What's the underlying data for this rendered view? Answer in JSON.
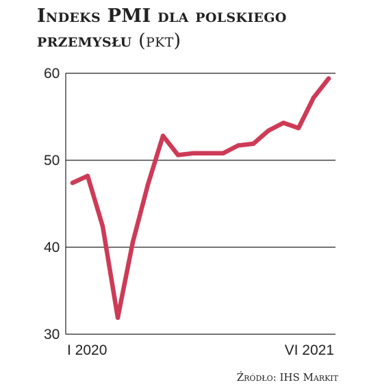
{
  "title": {
    "main": "Indeks PMI dla polskiego przemysłu",
    "unit": "(pkt)"
  },
  "source": "Źródło: IHS Markit",
  "colors": {
    "line": "#cd3b57",
    "grid": "#222222",
    "text": "#222222"
  },
  "chart_data": {
    "type": "line",
    "title": "Indeks PMI dla polskiego przemysłu (pkt)",
    "xlabel": "",
    "ylabel": "",
    "ylim": [
      30,
      60
    ],
    "yticks": [
      30,
      40,
      50,
      60
    ],
    "xtick_labels": [
      "I 2020",
      "VI 2021"
    ],
    "grid": "horizontal",
    "legend": "none",
    "x": [
      "2020-01",
      "2020-02",
      "2020-03",
      "2020-04",
      "2020-05",
      "2020-06",
      "2020-07",
      "2020-08",
      "2020-09",
      "2020-10",
      "2020-11",
      "2020-12",
      "2021-01",
      "2021-02",
      "2021-03",
      "2021-04",
      "2021-05",
      "2021-06"
    ],
    "series": [
      {
        "values": [
          47.4,
          48.2,
          42.4,
          31.9,
          40.6,
          47.2,
          52.8,
          50.6,
          50.8,
          50.8,
          50.8,
          51.7,
          51.9,
          53.4,
          54.3,
          53.7,
          57.2,
          59.4
        ]
      }
    ]
  }
}
